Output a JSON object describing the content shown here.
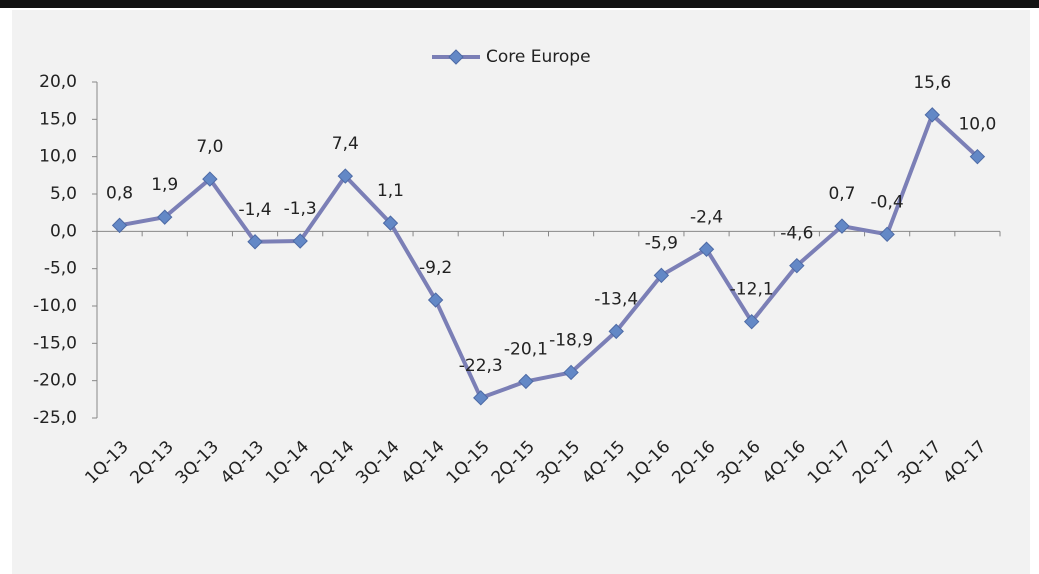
{
  "chart_data": {
    "type": "line",
    "categories": [
      "1Q-13",
      "2Q-13",
      "3Q-13",
      "4Q-13",
      "1Q-14",
      "2Q-14",
      "3Q-14",
      "4Q-14",
      "1Q-15",
      "2Q-15",
      "3Q-15",
      "4Q-15",
      "1Q-16",
      "2Q-16",
      "3Q-16",
      "4Q-16",
      "1Q-17",
      "2Q-17",
      "3Q-17",
      "4Q-17"
    ],
    "series": [
      {
        "name": "Core Europe",
        "color": "#7b7fb6",
        "marker_color": "#6388c6",
        "values": [
          0.8,
          1.9,
          7.0,
          -1.4,
          -1.3,
          7.4,
          1.1,
          -9.2,
          -22.3,
          -20.1,
          -18.9,
          -13.4,
          -5.9,
          -2.4,
          -12.1,
          -4.6,
          0.7,
          -0.4,
          15.6,
          10.0
        ],
        "value_labels": [
          "0,8",
          "1,9",
          "7,0",
          "-1,4",
          "-1,3",
          "7,4",
          "1,1",
          "-9,2",
          "-22,3",
          "-20,1",
          "-18,9",
          "-13,4",
          "-5,9",
          "-2,4",
          "-12,1",
          "-4,6",
          "0,7",
          "-0,4",
          "15,6",
          "10,0"
        ]
      }
    ],
    "ylim": [
      -25,
      20
    ],
    "yticks": [
      {
        "value": -25,
        "label": "-25,0"
      },
      {
        "value": -20,
        "label": "-20,0"
      },
      {
        "value": -15,
        "label": "-15,0"
      },
      {
        "value": -10,
        "label": "-10,0"
      },
      {
        "value": -5,
        "label": "-5,0"
      },
      {
        "value": 0,
        "label": "0,0"
      },
      {
        "value": 5,
        "label": "5,0"
      },
      {
        "value": 10,
        "label": "10,0"
      },
      {
        "value": 15,
        "label": "15,0"
      },
      {
        "value": 20,
        "label": "20,0"
      }
    ],
    "legend": "top"
  }
}
